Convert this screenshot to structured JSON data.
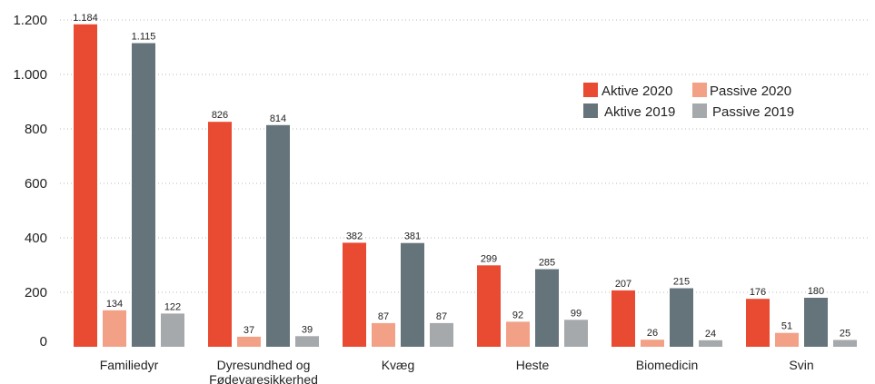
{
  "chart_data": {
    "type": "bar",
    "title": "",
    "xlabel": "",
    "ylabel": "",
    "categories": [
      [
        "Familiedyr"
      ],
      [
        "Dyresundhed og",
        "Fødevaresikkerhed"
      ],
      [
        "Kvæg"
      ],
      [
        "Heste"
      ],
      [
        "Biomedicin"
      ],
      [
        "Svin"
      ]
    ],
    "series": [
      {
        "name": "Aktive 2020",
        "color": "#e84a32",
        "values": [
          1184,
          826,
          382,
          299,
          207,
          176
        ],
        "labels": [
          "1.184",
          "826",
          "382",
          "299",
          "207",
          "176"
        ]
      },
      {
        "name": "Passive 2020",
        "color": "#f2a187",
        "values": [
          134,
          37,
          87,
          92,
          26,
          51
        ],
        "labels": [
          "134",
          "37",
          "87",
          "92",
          "26",
          "51"
        ]
      },
      {
        "name": "Aktive 2019",
        "color": "#65747b",
        "values": [
          1115,
          814,
          381,
          285,
          215,
          180
        ],
        "labels": [
          "1.115",
          "814",
          "381",
          "285",
          "215",
          "180"
        ]
      },
      {
        "name": "Passive 2019",
        "color": "#a5a9ab",
        "values": [
          122,
          39,
          87,
          99,
          24,
          25
        ],
        "labels": [
          "122",
          "39",
          "87",
          "99",
          "24",
          "25"
        ]
      }
    ],
    "ylim": [
      0,
      1200
    ],
    "yticks": [
      0,
      200,
      400,
      600,
      800,
      1000,
      1200
    ],
    "ytick_labels": [
      "0",
      "200",
      "400",
      "600",
      "800",
      "1.000",
      "1.200"
    ],
    "grid": true,
    "legend_position": "top-right"
  }
}
